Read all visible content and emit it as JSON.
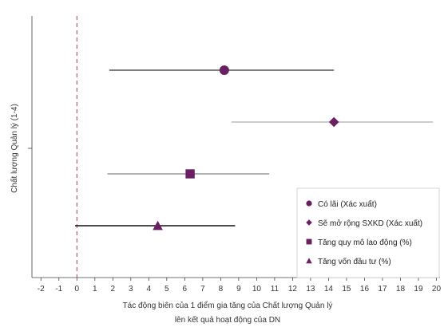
{
  "chart_data": {
    "type": "scatter",
    "subtype": "forest-plot",
    "title": "",
    "xlabel_line1": "Tác động biên của 1 điểm gia tăng của Chất lượng Quản lý",
    "xlabel_line2": "lên kết quả hoạt động của DN",
    "ylabel": "Chất lượng Quản lý (1-4)",
    "xlim": [
      -2.5,
      20.2
    ],
    "x_ticks": [
      -2,
      -1,
      0,
      1,
      2,
      3,
      4,
      5,
      6,
      7,
      8,
      9,
      10,
      11,
      12,
      13,
      14,
      15,
      16,
      17,
      18,
      19,
      20
    ],
    "reference_line": {
      "x": 0,
      "style": "dashed",
      "color": "#b23a48"
    },
    "grid": false,
    "legend_position": "bottom-right",
    "marker_color": "#6b1f63",
    "series": [
      {
        "name": "Có lãi (Xác xuất)",
        "marker": "circle",
        "estimate": 8.2,
        "ci_low": 1.8,
        "ci_high": 14.3,
        "ci_color": "#555555"
      },
      {
        "name": "Sẽ mở rộng SXKD (Xác xuất)",
        "marker": "diamond",
        "estimate": 14.3,
        "ci_low": 8.6,
        "ci_high": 19.8,
        "ci_color": "#bbbbbb"
      },
      {
        "name": "Tăng quy mô lao động (%)",
        "marker": "square",
        "estimate": 6.3,
        "ci_low": 1.7,
        "ci_high": 10.7,
        "ci_color": "#999999"
      },
      {
        "name": "Tăng vốn đầu tư (%)",
        "marker": "triangle",
        "estimate": 4.5,
        "ci_low": -0.1,
        "ci_high": 8.8,
        "ci_color": "#111111"
      }
    ]
  }
}
